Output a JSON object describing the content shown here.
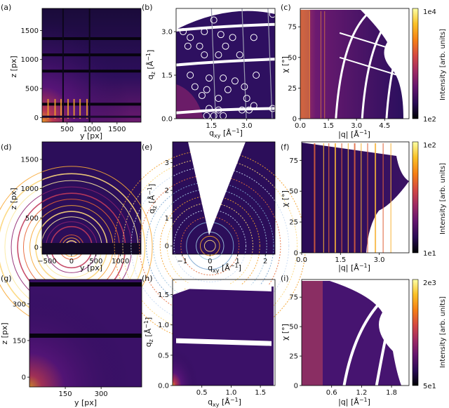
{
  "colormap": {
    "name": "inferno",
    "stops": [
      "#000004",
      "#280b54",
      "#65156e",
      "#9f2a63",
      "#d44842",
      "#f57d15",
      "#fac127",
      "#fcffa4"
    ]
  },
  "chart_data": [
    {
      "id": "a",
      "type": "heatmap",
      "panel_label": "(a)",
      "xlabel": "y [px]",
      "ylabel": "z [px]",
      "xticks": [
        "500",
        "1000",
        "1500"
      ],
      "yticks": [
        "0",
        "500",
        "1000",
        "1500"
      ],
      "xlim": [
        0,
        1980
      ],
      "ylim": [
        -80,
        1880
      ],
      "gaps_z": [
        1360,
        1080,
        800,
        230
      ],
      "gaps_y": [
        420,
        950
      ]
    },
    {
      "id": "b",
      "type": "heatmap",
      "panel_label": "(b)",
      "xlabel": "q_xy [Å⁻¹]",
      "ylabel": "q_z [Å⁻¹]",
      "xticks": [
        "1.5",
        "3.0"
      ],
      "yticks": [
        "0.0",
        "1.5",
        "3.0"
      ],
      "xlim": [
        0,
        4.2
      ],
      "ylim": [
        0,
        3.8
      ],
      "peaks": [
        [
          0.3,
          3.0
        ],
        [
          0.6,
          2.8
        ],
        [
          1.2,
          3.0
        ],
        [
          1.6,
          3.4
        ],
        [
          1.9,
          2.9
        ],
        [
          2.4,
          2.8
        ],
        [
          3.3,
          2.8
        ],
        [
          0.5,
          2.5
        ],
        [
          1.0,
          2.5
        ],
        [
          2.1,
          2.5
        ],
        [
          1.2,
          2.2
        ],
        [
          1.8,
          2.2
        ],
        [
          2.7,
          2.2
        ],
        [
          0.6,
          1.5
        ],
        [
          1.4,
          1.4
        ],
        [
          2.0,
          1.4
        ],
        [
          2.5,
          1.3
        ],
        [
          3.4,
          1.5
        ],
        [
          0.8,
          1.1
        ],
        [
          1.3,
          1.0
        ],
        [
          2.2,
          1.0
        ],
        [
          2.9,
          1.1
        ],
        [
          1.1,
          0.8
        ],
        [
          1.8,
          0.7
        ],
        [
          3.0,
          0.7
        ],
        [
          3.3,
          0.45
        ],
        [
          1.4,
          0.35
        ],
        [
          1.8,
          0.3
        ],
        [
          2.8,
          0.3
        ],
        [
          3.1,
          0.3
        ],
        [
          4.1,
          0.35
        ],
        [
          1.3,
          0.1
        ],
        [
          1.6,
          0.1
        ],
        [
          2.0,
          0.1
        ],
        [
          4.1,
          3.6
        ]
      ]
    },
    {
      "id": "c",
      "type": "heatmap",
      "panel_label": "(c)",
      "xlabel": "|q| [Å⁻¹]",
      "ylabel": "χ [°]",
      "xticks": [
        "0.0",
        "1.5",
        "3.0",
        "4.5"
      ],
      "yticks": [
        "0",
        "25",
        "50",
        "75"
      ],
      "xlim": [
        0,
        5.8
      ],
      "ylim": [
        0,
        90
      ],
      "colorbar": {
        "label": "Intensity [arb. units]",
        "max": "1e4",
        "min": "1e2"
      }
    },
    {
      "id": "d",
      "type": "heatmap",
      "panel_label": "(d)",
      "xlabel": "y [px]",
      "ylabel": "z [px]",
      "xticks": [
        "−500",
        "0",
        "500",
        "1000"
      ],
      "yticks": [
        "0",
        "500",
        "1000",
        "1500"
      ],
      "xlim": [
        -600,
        1420
      ],
      "ylim": [
        -120,
        1800
      ],
      "rings": [
        130,
        190,
        250,
        420,
        520,
        620,
        730,
        850,
        980,
        1100,
        1230,
        1360,
        1500,
        1650
      ]
    },
    {
      "id": "e",
      "type": "heatmap",
      "panel_label": "(e)",
      "xlabel": "q_xy [Å⁻¹]",
      "ylabel": "q_z [Å⁻¹]",
      "xticks": [
        "−1",
        "0",
        "1",
        "2"
      ],
      "yticks": [
        "0",
        "1",
        "2",
        "3"
      ],
      "xlim": [
        -1.35,
        2.35
      ],
      "ylim": [
        -0.3,
        3.75
      ],
      "rings": [
        0.2,
        0.35,
        0.5,
        0.85,
        1.05,
        1.3,
        1.55,
        1.8,
        2.05,
        2.3,
        2.55,
        2.85,
        3.15,
        3.45
      ]
    },
    {
      "id": "f",
      "type": "heatmap",
      "panel_label": "(f)",
      "xlabel": "|q| [Å⁻¹]",
      "ylabel": "χ [°]",
      "xticks": [
        "0.0",
        "1.5",
        "3.0"
      ],
      "yticks": [
        "0",
        "25",
        "50",
        "75"
      ],
      "xlim": [
        0,
        4.15
      ],
      "ylim": [
        0,
        90
      ],
      "colorbar": {
        "label": "Intensity [arb. units]",
        "max": "1e2",
        "min": "1e1"
      },
      "lines": [
        0.5,
        0.85,
        1.05,
        1.3,
        1.55,
        1.8,
        2.05,
        2.3,
        2.55,
        2.85,
        3.15,
        3.45
      ]
    },
    {
      "id": "g",
      "type": "heatmap",
      "panel_label": "(g)",
      "xlabel": "y [px]",
      "ylabel": "z [px]",
      "xticks": [
        "150",
        "300"
      ],
      "yticks": [
        "0",
        "150",
        "300"
      ],
      "xlim": [
        0,
        470
      ],
      "ylim": [
        -40,
        400
      ],
      "gaps_z": [
        380,
        170
      ]
    },
    {
      "id": "h",
      "type": "heatmap",
      "panel_label": "(h)",
      "xlabel": "q_xy [Å⁻¹]",
      "ylabel": "q_z [Å⁻¹]",
      "xticks": [
        "0.5",
        "1.0",
        "1.5"
      ],
      "yticks": [
        "0.0",
        "0.5",
        "1.0",
        "1.5"
      ],
      "xlim": [
        0,
        1.75
      ],
      "ylim": [
        0,
        1.75
      ]
    },
    {
      "id": "i",
      "type": "heatmap",
      "panel_label": "(i)",
      "xlabel": "|q| [Å⁻¹]",
      "ylabel": "χ [°]",
      "xticks": [
        "0.6",
        "1.2",
        "1.8"
      ],
      "yticks": [
        "0",
        "25",
        "50",
        "75"
      ],
      "xlim": [
        0,
        2.15
      ],
      "ylim": [
        0,
        90
      ],
      "colorbar": {
        "label": "Intensity [arb. units]",
        "max": "2e3",
        "min": "5e1"
      }
    }
  ]
}
